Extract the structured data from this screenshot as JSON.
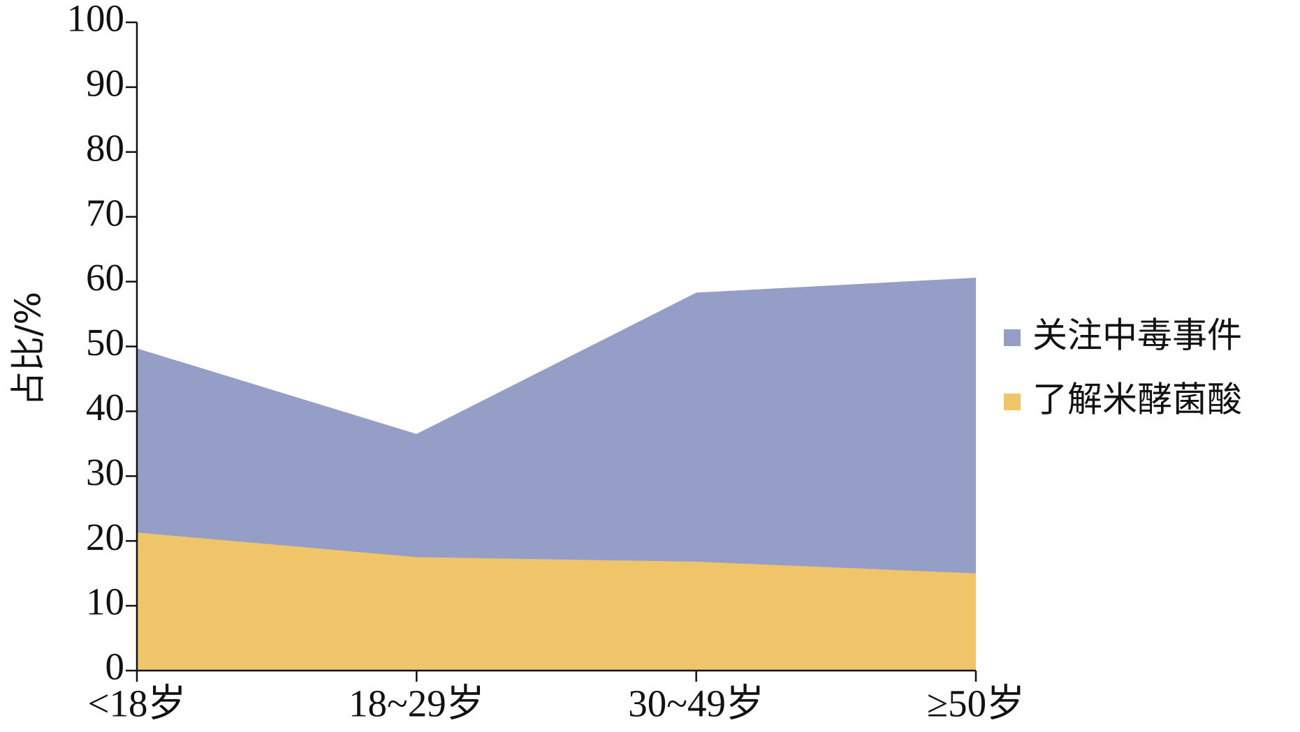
{
  "chart_data": {
    "type": "area",
    "y_label": "占比/%",
    "categories": [
      "<18岁",
      "18~29岁",
      "30~49岁",
      "≥50岁"
    ],
    "series": [
      {
        "name": "关注中毒事件",
        "color": "#959ec7",
        "values": [
          49.7,
          36.5,
          58.3,
          60.6
        ]
      },
      {
        "name": "了解米酵菌酸",
        "color": "#f0c569",
        "values": [
          21.3,
          17.5,
          16.8,
          15.0
        ]
      }
    ],
    "ylim": [
      0,
      100
    ],
    "yticks": [
      0,
      10,
      20,
      30,
      40,
      50,
      60,
      70,
      80,
      90,
      100
    ]
  }
}
